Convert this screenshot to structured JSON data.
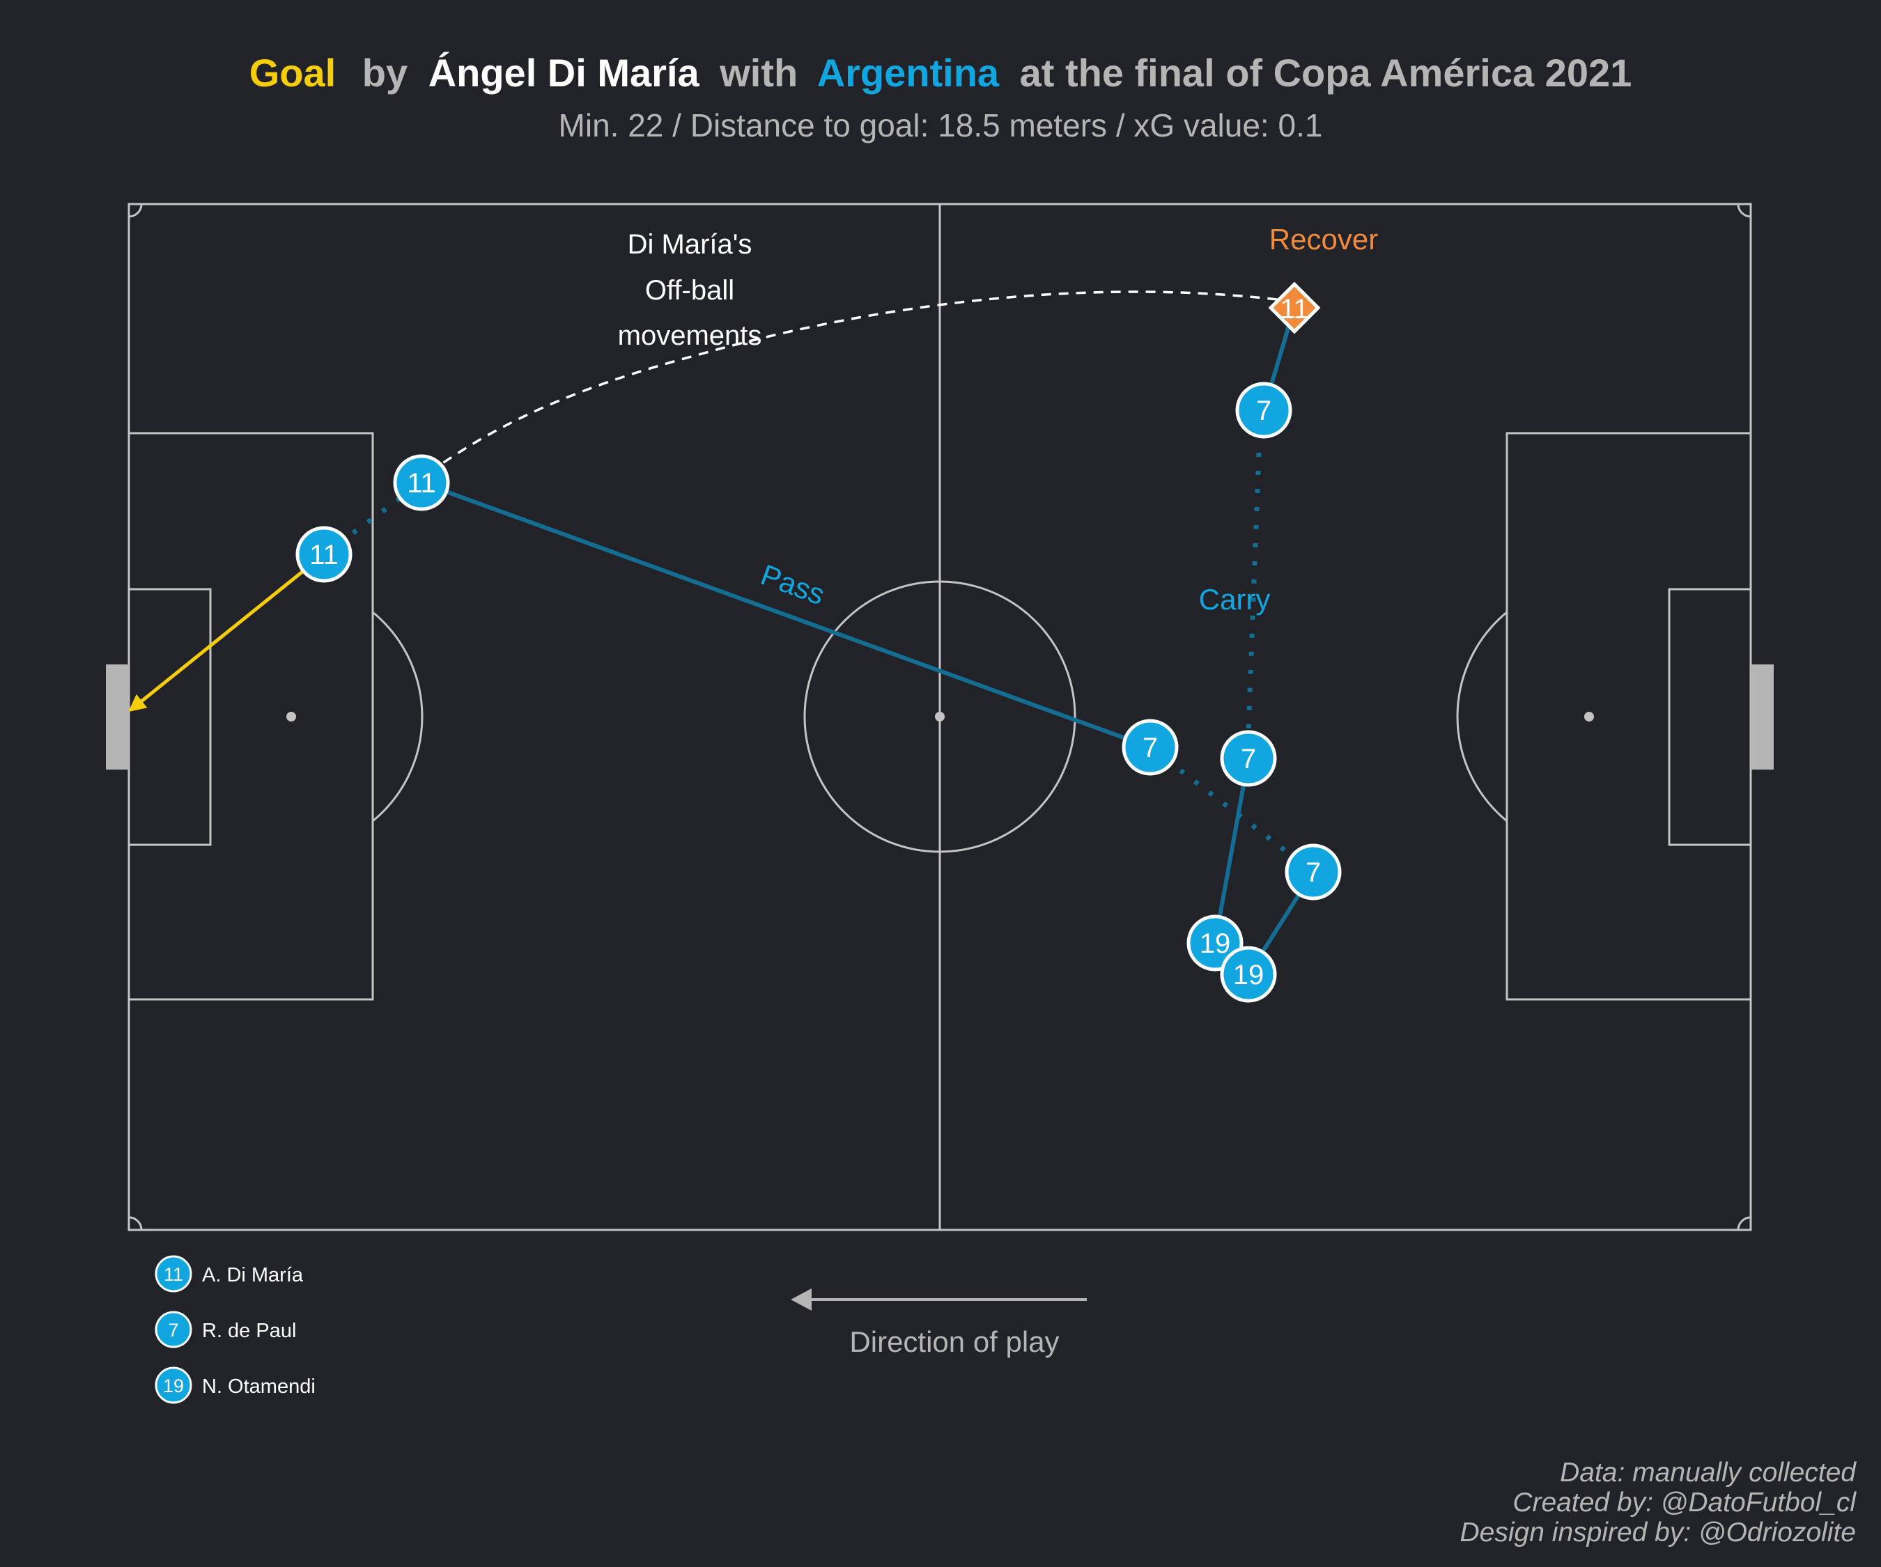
{
  "title": {
    "goal": "Goal",
    "by": "by",
    "player": "Ángel Di María",
    "with": "with",
    "team": "Argentina",
    "rest": "at the final of Copa América 2021"
  },
  "subtitle": "Min. 22 / Distance to goal: 18.5 meters / xG value: 0.1",
  "colors": {
    "background": "#212328",
    "goal_word": "#f5cd0a",
    "team_blue": "#11a6df",
    "recover_orange": "#f28a3c",
    "line_dark_blue": "#146e93",
    "pitch_lines": "#c4c4c4",
    "muted_text": "#b5b5b5"
  },
  "annotations": {
    "off_ball_1": "Di María's",
    "off_ball_2": "Off-ball",
    "off_ball_3": "movements",
    "recover": "Recover",
    "pass": "Pass",
    "carry": "Carry"
  },
  "markers": {
    "recover": "11",
    "dm_pass": "11",
    "dm_shot": "11",
    "dp_carry_end": "7",
    "dp_mid": "7",
    "dp_receive": "7",
    "dp_upper": "7",
    "ot_a": "19",
    "ot_b": "19"
  },
  "legend": [
    {
      "number": "11",
      "name": "A. Di María"
    },
    {
      "number": "7",
      "name": "R. de Paul"
    },
    {
      "number": "19",
      "name": "N. Otamendi"
    }
  ],
  "direction_label": "Direction of play",
  "credits": {
    "line1": "Data: manually collected",
    "line2": "Created by: @DatoFutbol_cl",
    "line3": "Design inspired by: @Odriozolite"
  }
}
